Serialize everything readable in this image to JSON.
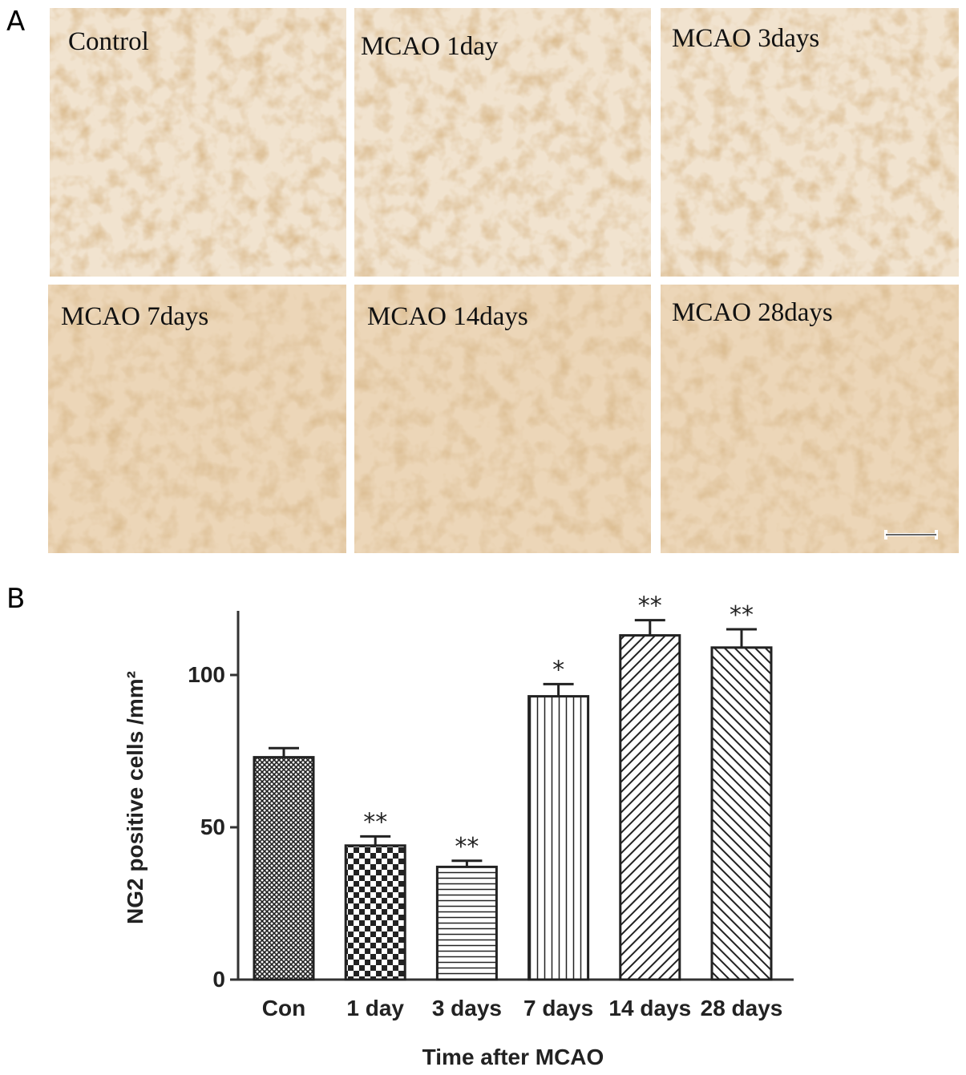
{
  "panel_a": {
    "letter": "A",
    "labels": [
      "Control",
      "MCAO 1day",
      "MCAO 3days",
      "MCAO 7days",
      "MCAO 14days",
      "MCAO 28days"
    ]
  },
  "panel_b": {
    "letter": "B"
  },
  "chart_data": {
    "type": "bar",
    "categories": [
      "Con",
      "1 day",
      "3 days",
      "7 days",
      "14 days",
      "28 days"
    ],
    "values": [
      73,
      44,
      37,
      93,
      113,
      109
    ],
    "errors": [
      3,
      3,
      2,
      4,
      5,
      6
    ],
    "annotations": [
      null,
      "**",
      "**",
      "*",
      "**",
      "**"
    ],
    "patterns": [
      "crosshatch",
      "checker",
      "horizontal",
      "vertical",
      "diag-up",
      "diag-down"
    ],
    "color": "#222222",
    "x_label": "Time after MCAO",
    "y_label": "NG2 positive cells /mm²",
    "ylim": [
      0,
      120
    ],
    "yticks": [
      0,
      50,
      100
    ],
    "grid": false
  }
}
